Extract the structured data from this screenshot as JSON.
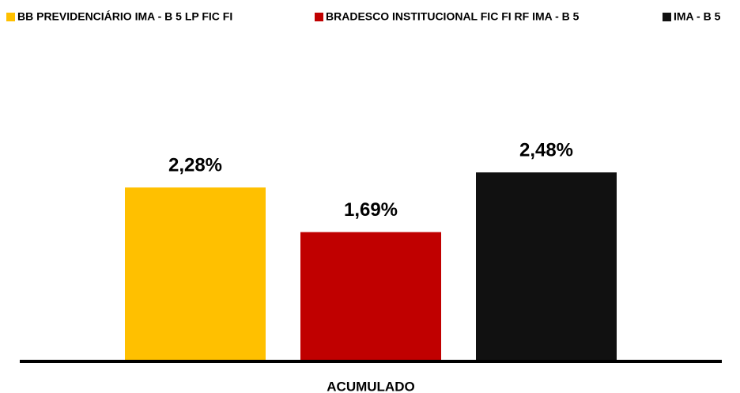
{
  "chart_data": {
    "type": "bar",
    "categories": [
      "ACUMULADO"
    ],
    "series": [
      {
        "name": "BB PREVIDENCIÁRIO IMA - B 5 LP FIC FI",
        "color": "#ffc000",
        "values": [
          2.28
        ],
        "value_labels": [
          "2,28%"
        ]
      },
      {
        "name": "BRADESCO INSTITUCIONAL FIC FI RF IMA - B 5",
        "color": "#c00000",
        "values": [
          1.69
        ],
        "value_labels": [
          "1,69%"
        ]
      },
      {
        "name": "IMA - B 5",
        "color": "#111111",
        "values": [
          2.48
        ],
        "value_labels": [
          "2,48%"
        ]
      }
    ],
    "legend": "top"
  }
}
